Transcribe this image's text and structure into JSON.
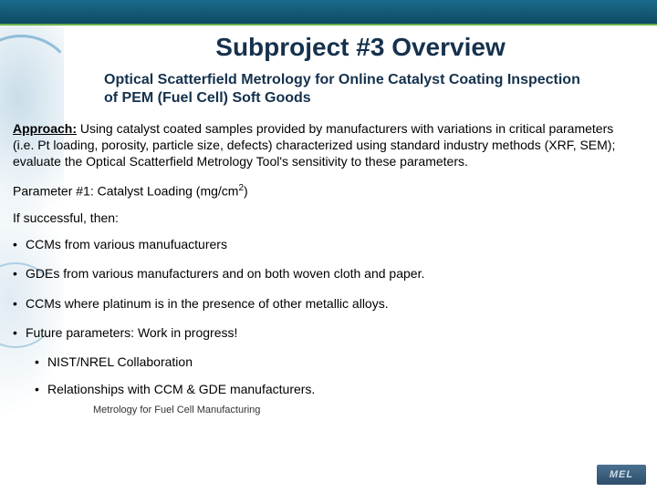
{
  "title": "Subproject #3 Overview",
  "subtitle": "Optical Scatterfield Metrology for Online Catalyst Coating Inspection of PEM (Fuel Cell) Soft Goods",
  "approach_label": "Approach:",
  "approach_text": "Using catalyst coated samples provided by manufacturers with variations in critical parameters (i.e. Pt loading, porosity, particle size, defects) characterized using standard industry methods (XRF, SEM); evaluate the Optical Scatterfield Metrology Tool's sensitivity to these parameters.",
  "param_label": "Parameter #1:  Catalyst Loading (mg/cm",
  "param_sup": "2",
  "param_close": ")",
  "if_success": "If successful, then:",
  "bullets": {
    "b1": "CCMs from various manufuacturers",
    "b2": "GDEs from various manufacturers and on both woven cloth and paper.",
    "b3": "CCMs where platinum is in the presence of other metallic alloys.",
    "b4": "Future parameters:  Work in progress!",
    "b5": "NIST/NREL Collaboration",
    "b6": "Relationships with CCM & GDE manufacturers."
  },
  "footer": "Metrology for Fuel Cell Manufacturing",
  "logo": "MEL",
  "colors": {
    "title_color": "#15314d",
    "topbar_start": "#1a6b8c",
    "topbar_end": "#0d4a63",
    "accent_green": "#6ab04c",
    "logo_bg_start": "#4a7090",
    "logo_bg_end": "#2d4e6b"
  }
}
